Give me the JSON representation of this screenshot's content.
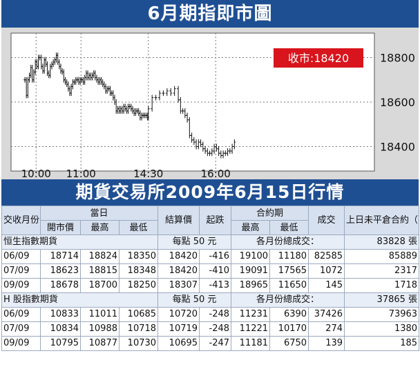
{
  "header": {
    "title": "6月期指即市圖"
  },
  "chart_data": {
    "type": "line",
    "closing_badge": "收市:18420",
    "x_ticks": [
      "10:00",
      "11:00",
      "14:30",
      "16:00"
    ],
    "y_ticks": [
      18800,
      18600,
      18400
    ],
    "ylim": [
      18290,
      18910
    ],
    "x_session_breaks": [
      "12:30",
      "14:30"
    ],
    "points": [
      [
        "09:45",
        18700
      ],
      [
        "09:47",
        18630
      ],
      [
        "09:49",
        18700
      ],
      [
        "09:51",
        18720
      ],
      [
        "09:53",
        18755
      ],
      [
        "09:55",
        18700
      ],
      [
        "09:57",
        18735
      ],
      [
        "09:59",
        18780
      ],
      [
        "10:01",
        18760
      ],
      [
        "10:03",
        18800
      ],
      [
        "10:05",
        18800
      ],
      [
        "10:07",
        18760
      ],
      [
        "10:09",
        18740
      ],
      [
        "10:11",
        18790
      ],
      [
        "10:13",
        18770
      ],
      [
        "10:15",
        18730
      ],
      [
        "10:17",
        18720
      ],
      [
        "10:19",
        18760
      ],
      [
        "10:21",
        18770
      ],
      [
        "10:23",
        18780
      ],
      [
        "10:25",
        18790
      ],
      [
        "10:27",
        18810
      ],
      [
        "10:29",
        18780
      ],
      [
        "10:31",
        18760
      ],
      [
        "10:33",
        18740
      ],
      [
        "10:35",
        18735
      ],
      [
        "10:37",
        18700
      ],
      [
        "10:39",
        18690
      ],
      [
        "10:41",
        18680
      ],
      [
        "10:43",
        18660
      ],
      [
        "10:45",
        18640
      ],
      [
        "10:47",
        18670
      ],
      [
        "10:49",
        18690
      ],
      [
        "10:51",
        18690
      ],
      [
        "10:53",
        18700
      ],
      [
        "10:55",
        18700
      ],
      [
        "10:57",
        18690
      ],
      [
        "10:59",
        18700
      ],
      [
        "11:01",
        18700
      ],
      [
        "11:03",
        18690
      ],
      [
        "11:05",
        18710
      ],
      [
        "11:07",
        18730
      ],
      [
        "11:09",
        18710
      ],
      [
        "11:11",
        18720
      ],
      [
        "11:13",
        18710
      ],
      [
        "11:15",
        18720
      ],
      [
        "11:17",
        18730
      ],
      [
        "11:19",
        18710
      ],
      [
        "11:21",
        18700
      ],
      [
        "11:23",
        18690
      ],
      [
        "11:25",
        18700
      ],
      [
        "11:27",
        18690
      ],
      [
        "11:29",
        18680
      ],
      [
        "11:31",
        18670
      ],
      [
        "11:33",
        18650
      ],
      [
        "11:35",
        18660
      ],
      [
        "11:37",
        18660
      ],
      [
        "11:39",
        18640
      ],
      [
        "11:41",
        18640
      ],
      [
        "11:43",
        18620
      ],
      [
        "11:45",
        18600
      ],
      [
        "11:47",
        18560
      ],
      [
        "11:49",
        18570
      ],
      [
        "11:51",
        18560
      ],
      [
        "11:53",
        18570
      ],
      [
        "11:55",
        18560
      ],
      [
        "11:57",
        18580
      ],
      [
        "11:59",
        18570
      ],
      [
        "12:01",
        18560
      ],
      [
        "12:03",
        18580
      ],
      [
        "12:05",
        18580
      ],
      [
        "12:07",
        18570
      ],
      [
        "12:09",
        18560
      ],
      [
        "12:11",
        18550
      ],
      [
        "12:13",
        18560
      ],
      [
        "12:15",
        18560
      ],
      [
        "12:17",
        18550
      ],
      [
        "12:19",
        18530
      ],
      [
        "12:21",
        18540
      ],
      [
        "12:23",
        18540
      ],
      [
        "12:25",
        18540
      ],
      [
        "12:27",
        18540
      ],
      [
        "12:29",
        18530
      ],
      [
        "14:30",
        18570
      ],
      [
        "14:35",
        18620
      ],
      [
        "14:40",
        18620
      ],
      [
        "14:45",
        18640
      ],
      [
        "14:50",
        18640
      ],
      [
        "14:55",
        18650
      ],
      [
        "15:00",
        18640
      ],
      [
        "15:05",
        18660
      ],
      [
        "15:10",
        18610
      ],
      [
        "15:13",
        18560
      ],
      [
        "15:16",
        18560
      ],
      [
        "15:19",
        18540
      ],
      [
        "15:22",
        18520
      ],
      [
        "15:25",
        18450
      ],
      [
        "15:28",
        18430
      ],
      [
        "15:31",
        18420
      ],
      [
        "15:34",
        18400
      ],
      [
        "15:37",
        18420
      ],
      [
        "15:40",
        18410
      ],
      [
        "15:43",
        18390
      ],
      [
        "15:46",
        18380
      ],
      [
        "15:49",
        18370
      ],
      [
        "15:52",
        18370
      ],
      [
        "15:55",
        18380
      ],
      [
        "15:58",
        18400
      ],
      [
        "16:01",
        18390
      ],
      [
        "16:04",
        18370
      ],
      [
        "16:07",
        18360
      ],
      [
        "16:10",
        18370
      ],
      [
        "16:13",
        18370
      ],
      [
        "16:16",
        18380
      ],
      [
        "16:19",
        18380
      ],
      [
        "16:22",
        18400
      ],
      [
        "16:25",
        18420
      ]
    ]
  },
  "subtitle": "期貨交易所2009年6月15日行情",
  "table": {
    "header1": [
      "交收月份",
      "當日",
      "結算價",
      "起跌",
      "合約期",
      "成交",
      "上日未平倉合約（張）"
    ],
    "header2": [
      "開市價",
      "最高",
      "最低",
      "最高",
      "最低"
    ],
    "groups": [
      {
        "name": "恒生指數期貨",
        "unit": "每點 50 元",
        "total_label": "各月份總成交：",
        "total_value": "83828 張",
        "rows": [
          [
            "06/09",
            "18714",
            "18824",
            "18350",
            "18420",
            "-416",
            "19100",
            "11180",
            "82585",
            "85889"
          ],
          [
            "07/09",
            "18623",
            "18815",
            "18348",
            "18420",
            "-410",
            "19091",
            "17565",
            "1072",
            "2317"
          ],
          [
            "09/09",
            "18678",
            "18700",
            "18250",
            "18307",
            "-413",
            "18965",
            "11650",
            "145",
            "1718"
          ]
        ]
      },
      {
        "name": "H 股指數期貨",
        "unit": "每點 50 元",
        "total_label": "各月份總成交：",
        "total_value": "37865 張",
        "rows": [
          [
            "06/09",
            "10833",
            "11011",
            "10685",
            "10720",
            "-248",
            "11231",
            "6390",
            "37426",
            "73963"
          ],
          [
            "07/09",
            "10834",
            "10988",
            "10718",
            "10719",
            "-248",
            "11221",
            "10170",
            "274",
            "1380"
          ],
          [
            "09/09",
            "10795",
            "10877",
            "10730",
            "10695",
            "-247",
            "11181",
            "6750",
            "139",
            "185"
          ]
        ]
      }
    ]
  },
  "colors": {
    "banner": "#1f4f93",
    "panel": "#d9d9d9",
    "badge": "#d8141c",
    "header_cell": "#d6e0ef"
  }
}
